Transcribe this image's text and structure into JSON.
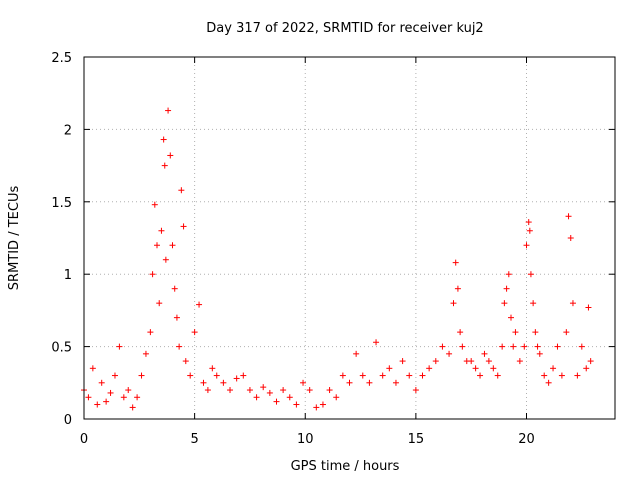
{
  "chart_data": {
    "type": "scatter",
    "title": "Day 317 of 2022, SRMTID for receiver kuj2",
    "xlabel": "GPS time / hours",
    "ylabel": "SRMTID / TECUs",
    "xlim": [
      0,
      24
    ],
    "ylim": [
      0,
      2.5
    ],
    "xticks": [
      0,
      5,
      10,
      15,
      20
    ],
    "yticks": [
      0,
      0.5,
      1,
      1.5,
      2,
      2.5
    ],
    "ytick_labels": [
      "0",
      "0.5",
      "1",
      "1.5",
      "2",
      "2.5"
    ],
    "grid": true,
    "marker": "+",
    "color": "#ff0000",
    "series": [
      {
        "name": "SRMTID",
        "x": [
          0.0,
          0.2,
          0.4,
          0.6,
          0.8,
          1.0,
          1.2,
          1.4,
          1.6,
          1.8,
          2.0,
          2.2,
          2.4,
          2.6,
          2.8,
          3.0,
          3.1,
          3.2,
          3.3,
          3.4,
          3.5,
          3.6,
          3.65,
          3.7,
          3.8,
          3.9,
          4.0,
          4.1,
          4.2,
          4.3,
          4.4,
          4.5,
          4.6,
          4.8,
          5.0,
          5.2,
          5.4,
          5.6,
          5.8,
          6.0,
          6.3,
          6.6,
          6.9,
          7.2,
          7.5,
          7.8,
          8.1,
          8.4,
          8.7,
          9.0,
          9.3,
          9.6,
          9.9,
          10.2,
          10.5,
          10.8,
          11.1,
          11.4,
          11.7,
          12.0,
          12.3,
          12.6,
          12.9,
          13.2,
          13.5,
          13.8,
          14.1,
          14.4,
          14.7,
          15.0,
          15.3,
          15.6,
          15.9,
          16.2,
          16.5,
          16.7,
          16.8,
          16.9,
          17.0,
          17.1,
          17.3,
          17.5,
          17.7,
          17.9,
          18.1,
          18.3,
          18.5,
          18.7,
          18.9,
          19.0,
          19.1,
          19.2,
          19.3,
          19.4,
          19.5,
          19.7,
          19.9,
          20.0,
          20.1,
          20.15,
          20.2,
          20.3,
          20.4,
          20.5,
          20.6,
          20.8,
          21.0,
          21.2,
          21.4,
          21.6,
          21.8,
          21.9,
          22.0,
          22.1,
          22.3,
          22.5,
          22.7,
          22.8,
          22.9
        ],
        "y": [
          0.2,
          0.15,
          0.35,
          0.1,
          0.25,
          0.12,
          0.18,
          0.3,
          0.5,
          0.15,
          0.2,
          0.08,
          0.15,
          0.3,
          0.45,
          0.6,
          1.0,
          1.48,
          1.2,
          0.8,
          1.3,
          1.93,
          1.75,
          1.1,
          2.13,
          1.82,
          1.2,
          0.9,
          0.7,
          0.5,
          1.58,
          1.33,
          0.4,
          0.3,
          0.6,
          0.79,
          0.25,
          0.2,
          0.35,
          0.3,
          0.25,
          0.2,
          0.28,
          0.3,
          0.2,
          0.15,
          0.22,
          0.18,
          0.12,
          0.2,
          0.15,
          0.1,
          0.25,
          0.2,
          0.08,
          0.1,
          0.2,
          0.15,
          0.3,
          0.25,
          0.45,
          0.3,
          0.25,
          0.53,
          0.3,
          0.35,
          0.25,
          0.4,
          0.3,
          0.2,
          0.3,
          0.35,
          0.4,
          0.5,
          0.45,
          0.8,
          1.08,
          0.9,
          0.6,
          0.5,
          0.4,
          0.4,
          0.35,
          0.3,
          0.45,
          0.4,
          0.35,
          0.3,
          0.5,
          0.8,
          0.9,
          1.0,
          0.7,
          0.5,
          0.6,
          0.4,
          0.5,
          1.2,
          1.36,
          1.3,
          1.0,
          0.8,
          0.6,
          0.5,
          0.45,
          0.3,
          0.25,
          0.35,
          0.5,
          0.3,
          0.6,
          1.4,
          1.25,
          0.8,
          0.3,
          0.5,
          0.35,
          0.77,
          0.4
        ]
      }
    ]
  }
}
